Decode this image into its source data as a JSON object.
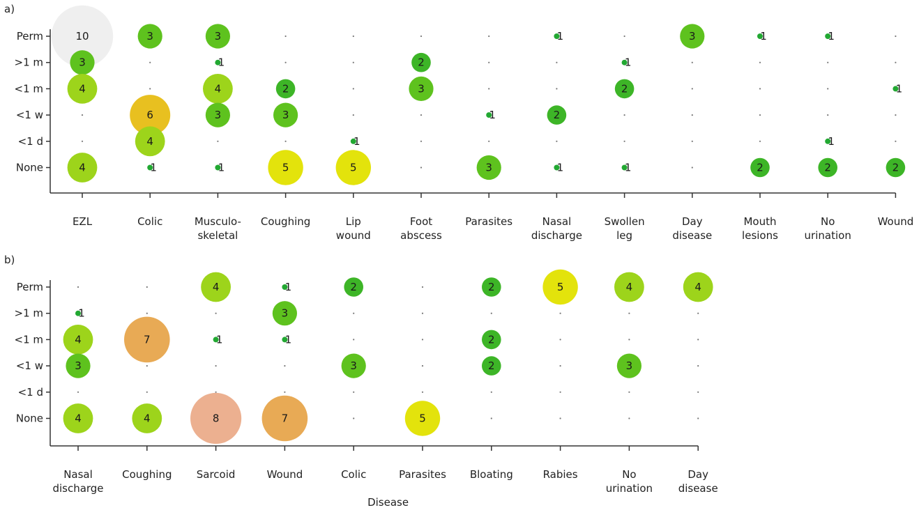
{
  "chart_data": [
    {
      "panel_label": "a)",
      "type": "scatter",
      "x_categories": [
        [
          "EZL"
        ],
        [
          "Colic"
        ],
        [
          "Musculo-",
          "skeletal"
        ],
        [
          "Coughing"
        ],
        [
          "Lip",
          "wound"
        ],
        [
          "Foot",
          "abscess"
        ],
        [
          "Parasites"
        ],
        [
          "Nasal",
          "discharge"
        ],
        [
          "Swollen",
          "leg"
        ],
        [
          "Day",
          "disease"
        ],
        [
          "Mouth",
          "lesions"
        ],
        [
          "No",
          "urination"
        ],
        [
          "Wound"
        ]
      ],
      "y_categories": [
        "Perm",
        ">1 m",
        "<1 m",
        "<1 w",
        "<1 d",
        "None"
      ],
      "points": [
        {
          "x": 0,
          "y": 0,
          "value": 10
        },
        {
          "x": 1,
          "y": 0,
          "value": 3
        },
        {
          "x": 2,
          "y": 0,
          "value": 3
        },
        {
          "x": 7,
          "y": 0,
          "value": 1
        },
        {
          "x": 9,
          "y": 0,
          "value": 3
        },
        {
          "x": 10,
          "y": 0,
          "value": 1
        },
        {
          "x": 11,
          "y": 0,
          "value": 1
        },
        {
          "x": 0,
          "y": 1,
          "value": 3
        },
        {
          "x": 2,
          "y": 1,
          "value": 1
        },
        {
          "x": 5,
          "y": 1,
          "value": 2
        },
        {
          "x": 8,
          "y": 1,
          "value": 1
        },
        {
          "x": 0,
          "y": 2,
          "value": 4
        },
        {
          "x": 2,
          "y": 2,
          "value": 4
        },
        {
          "x": 3,
          "y": 2,
          "value": 2
        },
        {
          "x": 5,
          "y": 2,
          "value": 3
        },
        {
          "x": 8,
          "y": 2,
          "value": 2
        },
        {
          "x": 12,
          "y": 2,
          "value": 1
        },
        {
          "x": 1,
          "y": 3,
          "value": 6
        },
        {
          "x": 2,
          "y": 3,
          "value": 3
        },
        {
          "x": 3,
          "y": 3,
          "value": 3
        },
        {
          "x": 6,
          "y": 3,
          "value": 1
        },
        {
          "x": 7,
          "y": 3,
          "value": 2
        },
        {
          "x": 1,
          "y": 4,
          "value": 4
        },
        {
          "x": 4,
          "y": 4,
          "value": 1
        },
        {
          "x": 11,
          "y": 4,
          "value": 1
        },
        {
          "x": 0,
          "y": 5,
          "value": 4
        },
        {
          "x": 1,
          "y": 5,
          "value": 1
        },
        {
          "x": 2,
          "y": 5,
          "value": 1
        },
        {
          "x": 3,
          "y": 5,
          "value": 5
        },
        {
          "x": 4,
          "y": 5,
          "value": 5
        },
        {
          "x": 6,
          "y": 5,
          "value": 3
        },
        {
          "x": 7,
          "y": 5,
          "value": 1
        },
        {
          "x": 8,
          "y": 5,
          "value": 1
        },
        {
          "x": 10,
          "y": 5,
          "value": 2
        },
        {
          "x": 11,
          "y": 5,
          "value": 2
        },
        {
          "x": 12,
          "y": 5,
          "value": 2
        }
      ],
      "xlabel": "",
      "ylabel": "",
      "grid": false
    },
    {
      "panel_label": "b)",
      "type": "scatter",
      "x_categories": [
        [
          "Nasal",
          "discharge"
        ],
        [
          "Coughing"
        ],
        [
          "Sarcoid"
        ],
        [
          "Wound"
        ],
        [
          "Colic"
        ],
        [
          "Parasites"
        ],
        [
          "Bloating"
        ],
        [
          "Rabies"
        ],
        [
          "No",
          "urination"
        ],
        [
          "Day",
          "disease"
        ]
      ],
      "y_categories": [
        "Perm",
        ">1 m",
        "<1 m",
        "<1 w",
        "<1 d",
        "None"
      ],
      "points": [
        {
          "x": 2,
          "y": 0,
          "value": 4
        },
        {
          "x": 3,
          "y": 0,
          "value": 1
        },
        {
          "x": 4,
          "y": 0,
          "value": 2
        },
        {
          "x": 6,
          "y": 0,
          "value": 2
        },
        {
          "x": 7,
          "y": 0,
          "value": 5
        },
        {
          "x": 8,
          "y": 0,
          "value": 4
        },
        {
          "x": 9,
          "y": 0,
          "value": 4
        },
        {
          "x": 0,
          "y": 1,
          "value": 1
        },
        {
          "x": 3,
          "y": 1,
          "value": 3
        },
        {
          "x": 0,
          "y": 2,
          "value": 4
        },
        {
          "x": 1,
          "y": 2,
          "value": 7
        },
        {
          "x": 2,
          "y": 2,
          "value": 1
        },
        {
          "x": 3,
          "y": 2,
          "value": 1
        },
        {
          "x": 6,
          "y": 2,
          "value": 2
        },
        {
          "x": 0,
          "y": 3,
          "value": 3
        },
        {
          "x": 4,
          "y": 3,
          "value": 3
        },
        {
          "x": 6,
          "y": 3,
          "value": 2
        },
        {
          "x": 8,
          "y": 3,
          "value": 3
        },
        {
          "x": 0,
          "y": 5,
          "value": 4
        },
        {
          "x": 1,
          "y": 5,
          "value": 4
        },
        {
          "x": 2,
          "y": 5,
          "value": 8
        },
        {
          "x": 3,
          "y": 5,
          "value": 7
        },
        {
          "x": 5,
          "y": 5,
          "value": 5
        }
      ],
      "xlabel": "Disease",
      "ylabel": "",
      "grid": false
    }
  ],
  "colors": {
    "1": "#22a832",
    "2": "#3db527",
    "3": "#5ec21e",
    "4": "#9dd41b",
    "5": "#e3e30c",
    "6": "#e8c020",
    "7": "#e8aa55",
    "8": "#ecb090",
    "10": "#efefef",
    "empty_dot": "#777777",
    "axis": "#333333"
  }
}
